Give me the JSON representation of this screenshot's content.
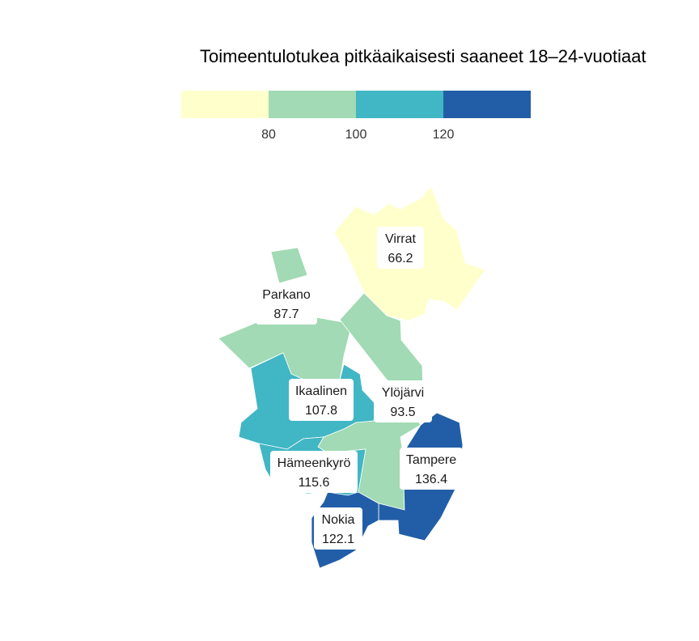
{
  "title": "Toimeentulotukea pitkäaikaisesti saaneet 18–24-vuotiaat",
  "legend": {
    "colors": [
      "#ffffcc",
      "#a1dab4",
      "#41b6c4",
      "#225ea8"
    ],
    "ticks": [
      "80",
      "100",
      "120"
    ]
  },
  "regions": [
    {
      "name": "Virrat",
      "value": "66.2",
      "color": "#ffffcc"
    },
    {
      "name": "Parkano",
      "value": "87.7",
      "color": "#a1dab4"
    },
    {
      "name": "Ikaalinen",
      "value": "107.8",
      "color": "#41b6c4"
    },
    {
      "name": "Ylöjärvi",
      "value": "93.5",
      "color": "#a1dab4"
    },
    {
      "name": "Hämeenkyrö",
      "value": "115.6",
      "color": "#41b6c4"
    },
    {
      "name": "Tampere",
      "value": "136.4",
      "color": "#225ea8"
    },
    {
      "name": "Nokia",
      "value": "122.1",
      "color": "#225ea8"
    }
  ]
}
